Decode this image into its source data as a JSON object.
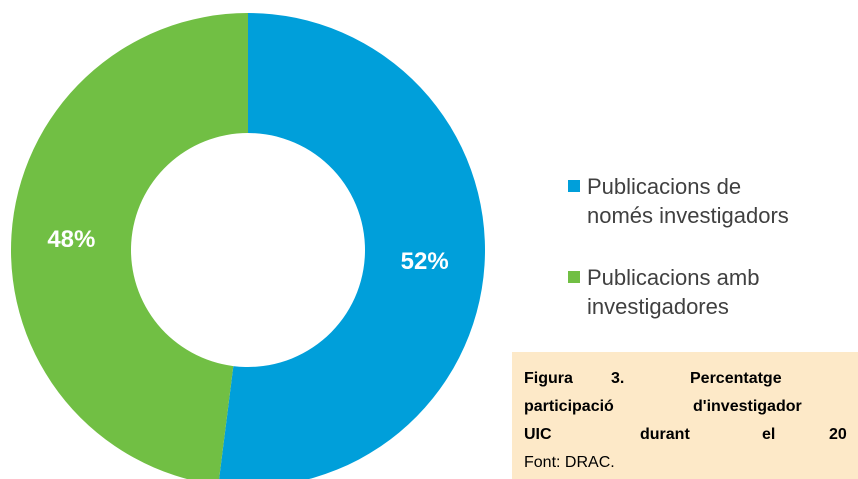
{
  "chart_data": {
    "type": "donut",
    "categories": [
      "Publicacions de només investigadors",
      "Publicacions amb investigadores"
    ],
    "values": [
      52,
      48
    ],
    "value_labels": [
      "52%",
      "48%"
    ],
    "colors": [
      "#009fda",
      "#71bf44"
    ],
    "legend": "right"
  },
  "caption": {
    "lines": [
      [
        "Figura",
        "3.",
        "Percentatge"
      ],
      [
        "participació",
        "d'investigador"
      ],
      [
        "UIC",
        "durant",
        "el",
        "20"
      ]
    ],
    "source": "Font: DRAC."
  }
}
